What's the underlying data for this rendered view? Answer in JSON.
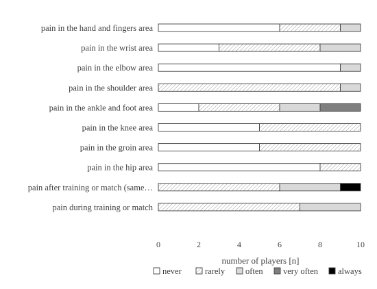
{
  "chart_data": {
    "type": "bar",
    "orientation": "horizontal",
    "stacked": true,
    "categories": [
      "pain in the hand and fingers area",
      "pain in the wrist area",
      "pain in the elbow area",
      "pain in the shoulder area",
      "pain in the ankle and foot area",
      "pain in the knee area",
      "pain in the groin area",
      "pain in the hip area",
      "pain after training or match (same…",
      "pain during training or match"
    ],
    "series": [
      {
        "name": "never",
        "values": [
          6,
          3,
          9,
          0,
          2,
          5,
          5,
          8,
          0,
          0
        ]
      },
      {
        "name": "rarely",
        "values": [
          3,
          5,
          0,
          9,
          4,
          5,
          5,
          2,
          6,
          7
        ]
      },
      {
        "name": "often",
        "values": [
          1,
          2,
          1,
          1,
          2,
          0,
          0,
          0,
          3,
          3
        ]
      },
      {
        "name": "very often",
        "values": [
          0,
          0,
          0,
          0,
          2,
          0,
          0,
          0,
          0,
          0
        ]
      },
      {
        "name": "always",
        "values": [
          0,
          0,
          0,
          0,
          0,
          0,
          0,
          0,
          1,
          0
        ]
      }
    ],
    "xlabel": "number of players [n]",
    "ylabel": "",
    "xlim": [
      0,
      10
    ],
    "xticks": [
      0,
      2,
      4,
      6,
      8,
      10
    ],
    "grid": false,
    "legend_position": "bottom",
    "colors": {
      "never": "#ffffff",
      "rarely": "hatched",
      "often": "#d9d9d9",
      "very often": "#7f7f7f",
      "always": "#000000"
    }
  }
}
